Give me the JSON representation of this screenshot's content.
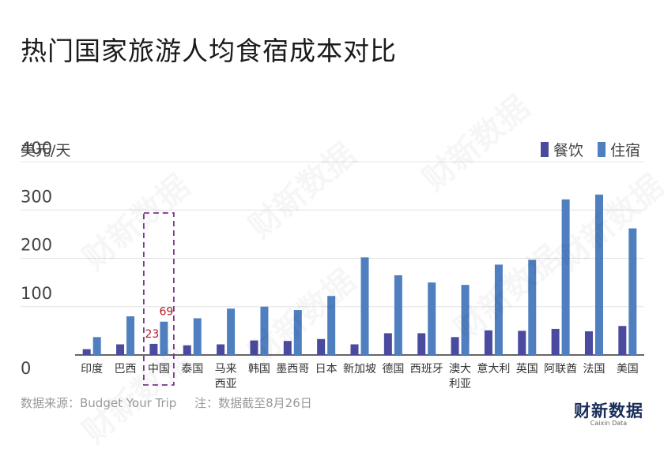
{
  "title": "热门国家旅游人均食宿成本对比",
  "unit_label": "美元/天",
  "legend": {
    "food": {
      "label": "餐饮",
      "color": "#4a4a9e"
    },
    "lodging": {
      "label": "住宿",
      "color": "#4f7fbf"
    }
  },
  "source": "数据来源：Budget Your Trip",
  "note": "注：数据截至8月26日",
  "logo": {
    "cn": "财新数据",
    "en": "Caixin Data"
  },
  "watermark": "财新数据",
  "chart_data": {
    "type": "bar",
    "title": "热门国家旅游人均食宿成本对比",
    "ylabel": "美元/天",
    "ylim": [
      0,
      400
    ],
    "yticks": [
      0,
      100,
      200,
      300,
      400
    ],
    "grid": true,
    "legend_position": "top-right",
    "highlight_category": "中国",
    "categories": [
      [
        "印度"
      ],
      [
        "巴西"
      ],
      [
        "中国"
      ],
      [
        "泰国"
      ],
      [
        "马来",
        "西亚"
      ],
      [
        "韩国"
      ],
      [
        "墨西哥"
      ],
      [
        "日本"
      ],
      [
        "新加坡"
      ],
      [
        "德国"
      ],
      [
        "西班牙"
      ],
      [
        "澳大",
        "利亚"
      ],
      [
        "意大利"
      ],
      [
        "英国"
      ],
      [
        "阿联酋"
      ],
      [
        "法国"
      ],
      [
        "美国"
      ]
    ],
    "series": [
      {
        "name": "餐饮",
        "values": [
          12,
          22,
          23,
          20,
          22,
          30,
          29,
          33,
          22,
          45,
          45,
          37,
          51,
          50,
          54,
          49,
          60
        ]
      },
      {
        "name": "住宿",
        "values": [
          37,
          80,
          69,
          76,
          96,
          100,
          93,
          122,
          202,
          165,
          150,
          145,
          187,
          197,
          322,
          332,
          262
        ]
      }
    ],
    "data_labels": [
      {
        "category": "中国",
        "series": "餐饮",
        "text": "23"
      },
      {
        "category": "中国",
        "series": "住宿",
        "text": "69"
      }
    ]
  }
}
